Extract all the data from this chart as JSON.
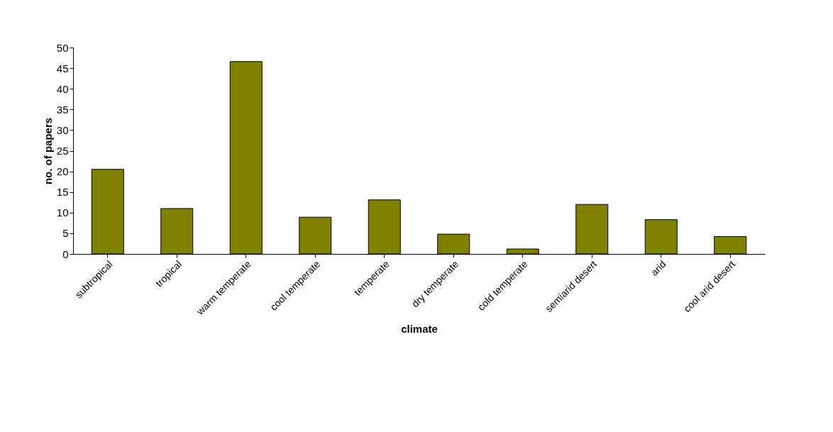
{
  "chart_data": {
    "type": "bar",
    "categories": [
      "subtropical",
      "tropical",
      "warm temperate",
      "cool temperate",
      "temperate",
      "dry temperate",
      "cold temperate",
      "semiarid desert",
      "arid",
      "cool arid desert"
    ],
    "values": [
      20.5,
      11.0,
      46.6,
      8.9,
      13.1,
      4.8,
      1.2,
      12.0,
      8.3,
      4.2
    ],
    "color": "#808000",
    "xlabel": "climate",
    "ylabel": "no. of papers",
    "ylim": [
      0,
      50
    ],
    "yticks": [
      0,
      5,
      10,
      15,
      20,
      25,
      30,
      35,
      40,
      45,
      50
    ],
    "grid": false
  }
}
